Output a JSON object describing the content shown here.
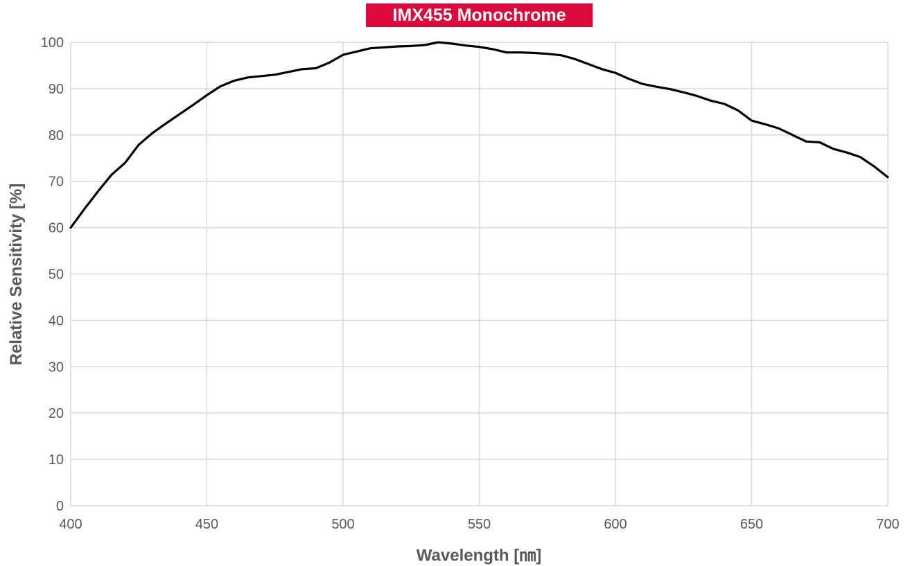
{
  "chart_data": {
    "type": "line",
    "title": "IMX455 Monochrome",
    "xlabel": "Wavelength [㎚]",
    "ylabel": "Relative Sensitivity [%]",
    "xlim": [
      400,
      700
    ],
    "ylim": [
      0,
      100
    ],
    "xticks": [
      400,
      450,
      500,
      550,
      600,
      650,
      700
    ],
    "yticks": [
      0,
      10,
      20,
      30,
      40,
      50,
      60,
      70,
      80,
      90,
      100
    ],
    "grid": true,
    "colors": {
      "title_bg": "#dc0a3c",
      "line": "#000000",
      "grid": "#d9d9d9",
      "text": "#595959"
    },
    "series": [
      {
        "x": [
          400,
          405,
          410,
          415,
          420,
          425,
          430,
          435,
          440,
          445,
          450,
          455,
          460,
          465,
          470,
          475,
          480,
          485,
          490,
          495,
          500,
          505,
          510,
          515,
          520,
          525,
          530,
          535,
          540,
          545,
          550,
          555,
          560,
          565,
          570,
          575,
          580,
          585,
          590,
          595,
          600,
          605,
          610,
          615,
          620,
          625,
          630,
          635,
          640,
          645,
          650,
          655,
          660,
          665,
          670,
          675,
          680,
          685,
          690,
          695,
          700
        ],
        "y": [
          60,
          64,
          67.8,
          71.4,
          74,
          77.9,
          80.4,
          82.5,
          84.5,
          86.5,
          88.6,
          90.5,
          91.7,
          92.4,
          92.7,
          93,
          93.6,
          94.2,
          94.4,
          95.6,
          97.3,
          98,
          98.7,
          98.9,
          99.1,
          99.2,
          99.4,
          100,
          99.7,
          99.3,
          99,
          98.5,
          97.8,
          97.8,
          97.7,
          97.5,
          97.2,
          96.4,
          95.3,
          94.2,
          93.4,
          92.1,
          91,
          90.4,
          89.9,
          89.2,
          88.4,
          87.4,
          86.7,
          85.3,
          83.1,
          82.3,
          81.4,
          80,
          78.6,
          78.4,
          77,
          76.2,
          75.2,
          73.2,
          70.9
        ]
      }
    ]
  }
}
